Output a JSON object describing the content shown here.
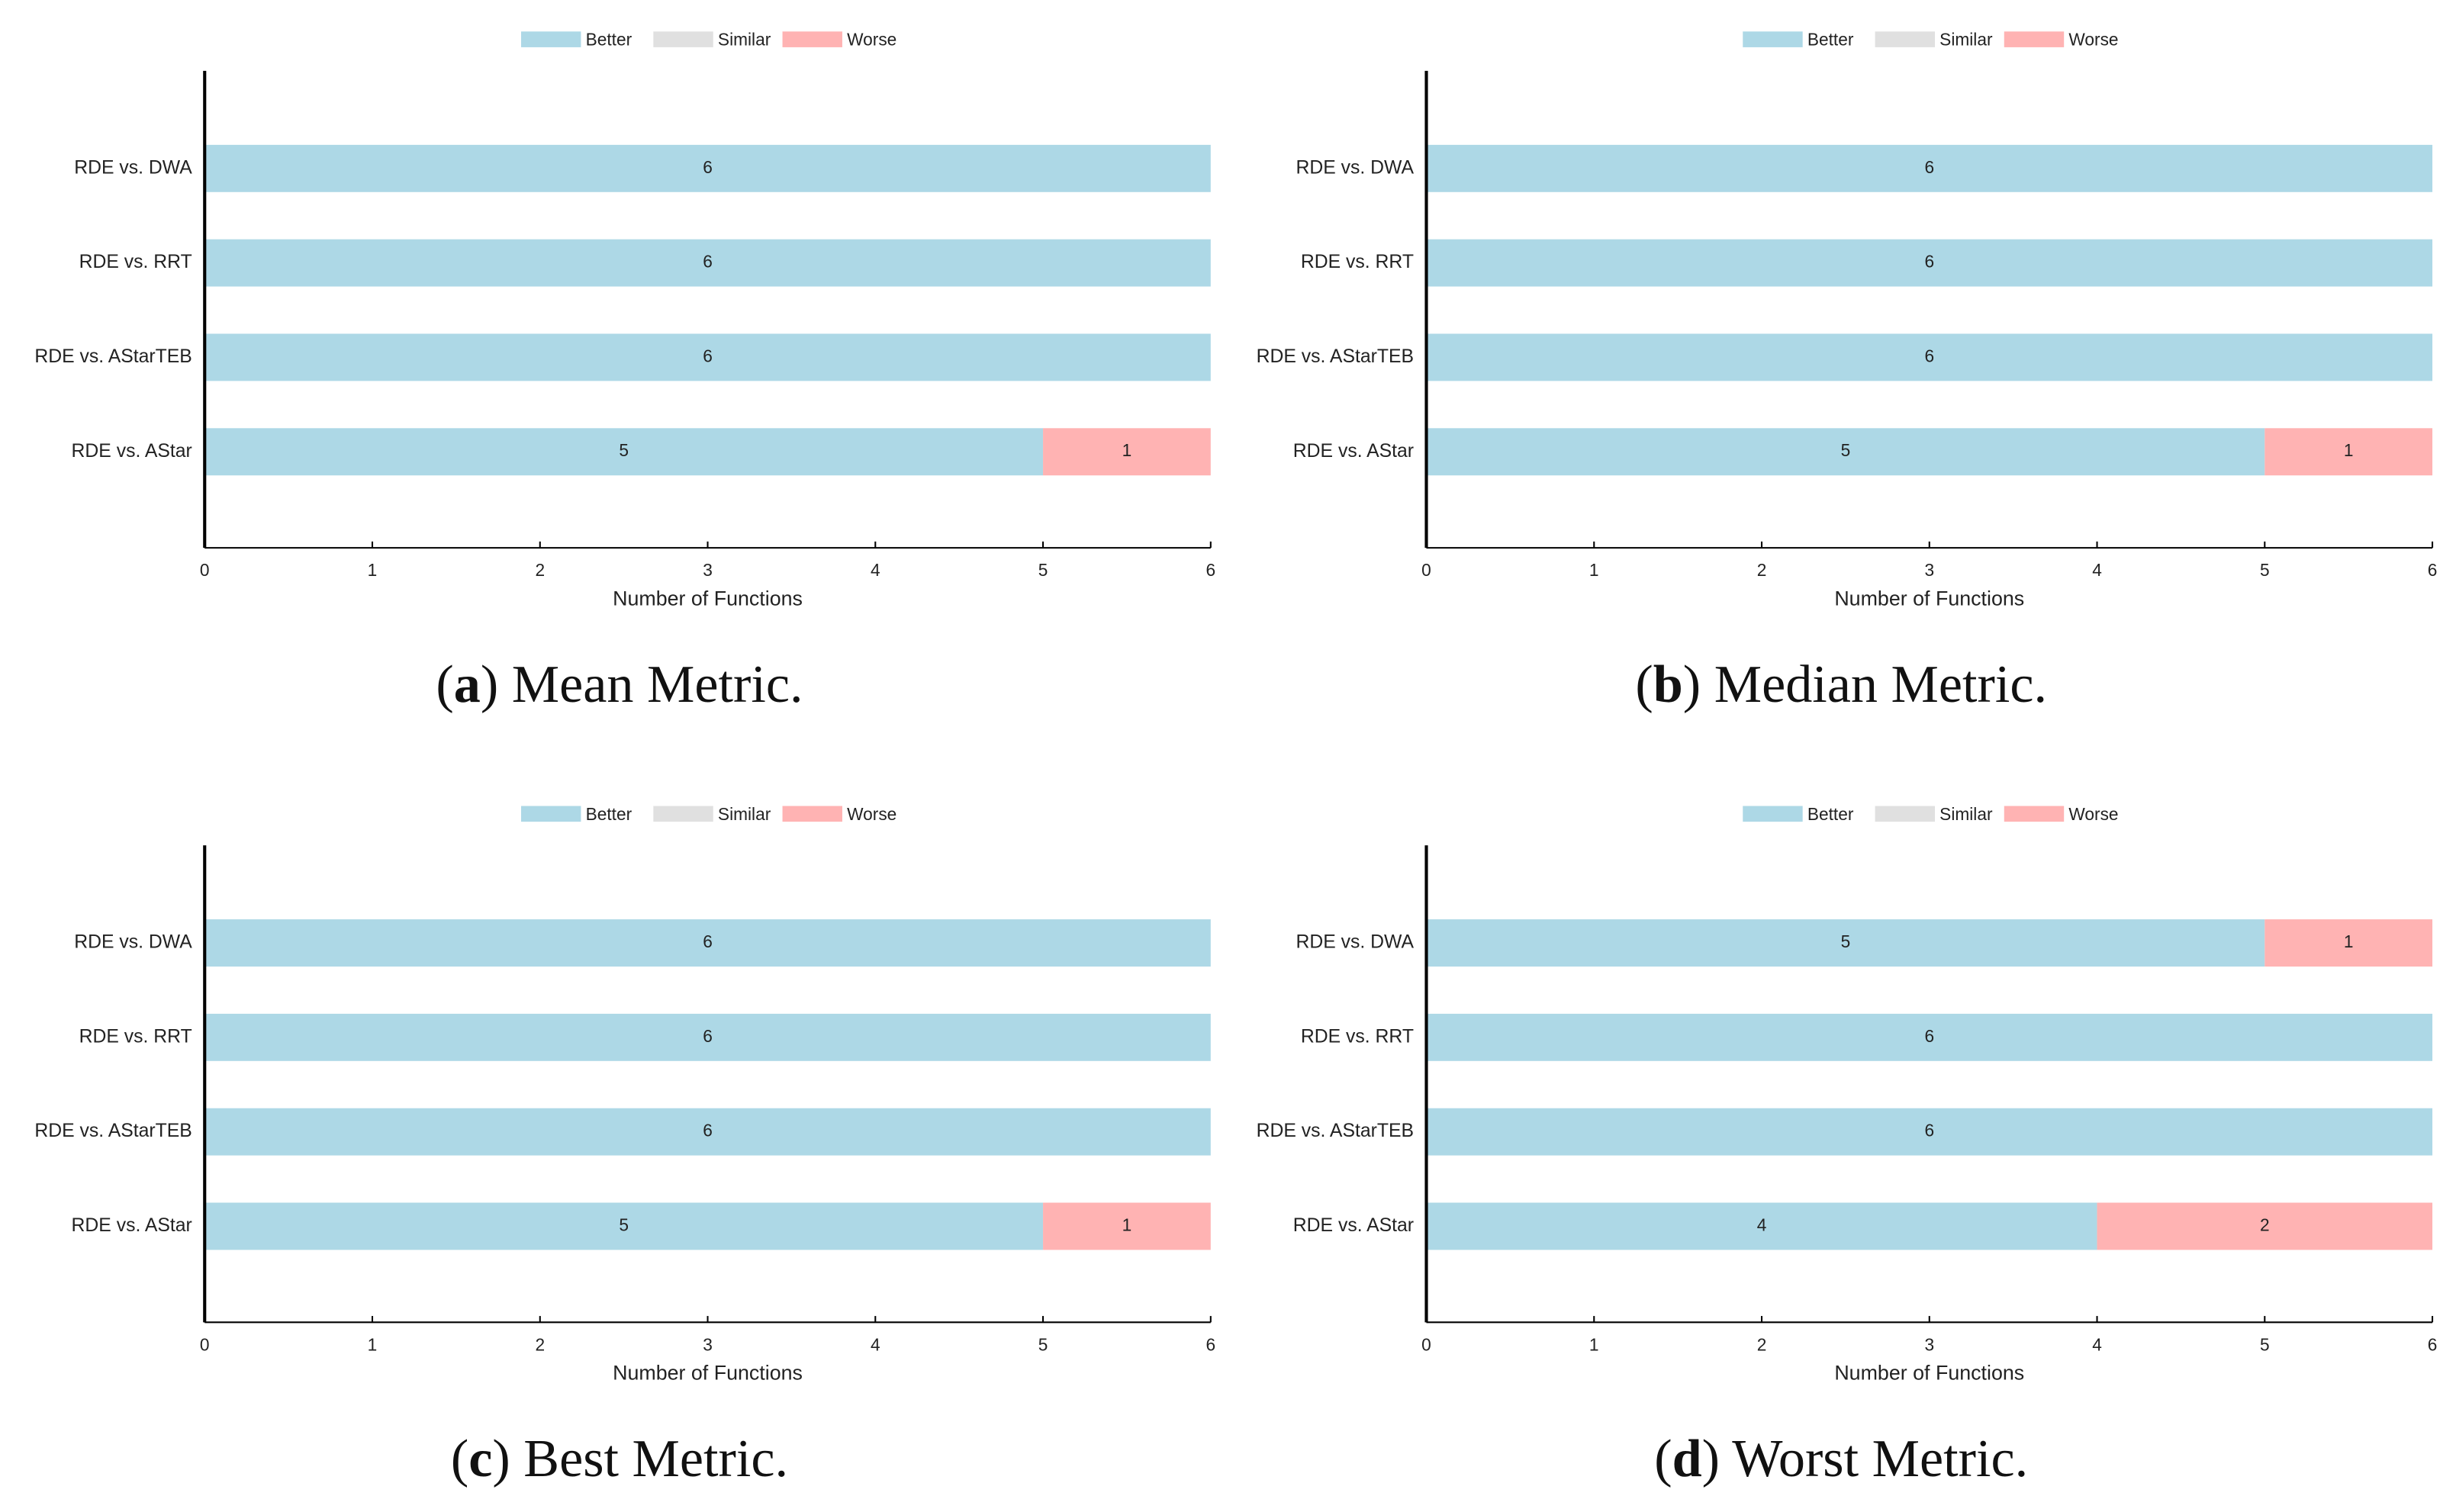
{
  "chart_data": [
    {
      "type": "bar",
      "orientation": "horizontal",
      "stacked": true,
      "categories": [
        "RDE vs. DWA",
        "RDE vs. RRT",
        "RDE vs. AStarTEB",
        "RDE vs. AStar"
      ],
      "series": [
        {
          "name": "Better",
          "color": "#add8e6",
          "values": [
            6,
            6,
            6,
            5
          ]
        },
        {
          "name": "Similar",
          "color": "#e0e0e0",
          "values": [
            0,
            0,
            0,
            0
          ]
        },
        {
          "name": "Worse",
          "color": "#ffb3b3",
          "values": [
            0,
            0,
            0,
            1
          ]
        }
      ],
      "xlim": [
        0,
        6
      ],
      "xticks": [
        0,
        1,
        2,
        3,
        4,
        5,
        6
      ],
      "xlabel": "Number of Functions",
      "legend": "top",
      "caption": {
        "open": "(",
        "label": "a",
        "text": ") Mean Metric."
      }
    },
    {
      "type": "bar",
      "orientation": "horizontal",
      "stacked": true,
      "categories": [
        "RDE vs. DWA",
        "RDE vs. RRT",
        "RDE vs. AStarTEB",
        "RDE vs. AStar"
      ],
      "series": [
        {
          "name": "Better",
          "color": "#add8e6",
          "values": [
            6,
            6,
            6,
            5
          ]
        },
        {
          "name": "Similar",
          "color": "#e0e0e0",
          "values": [
            0,
            0,
            0,
            0
          ]
        },
        {
          "name": "Worse",
          "color": "#ffb3b3",
          "values": [
            0,
            0,
            0,
            1
          ]
        }
      ],
      "xlim": [
        0,
        6
      ],
      "xticks": [
        0,
        1,
        2,
        3,
        4,
        5,
        6
      ],
      "xlabel": "Number of Functions",
      "legend": "top",
      "caption": {
        "open": "(",
        "label": "b",
        "text": ") Median Metric."
      }
    },
    {
      "type": "bar",
      "orientation": "horizontal",
      "stacked": true,
      "categories": [
        "RDE vs. DWA",
        "RDE vs. RRT",
        "RDE vs. AStarTEB",
        "RDE vs. AStar"
      ],
      "series": [
        {
          "name": "Better",
          "color": "#add8e6",
          "values": [
            6,
            6,
            6,
            5
          ]
        },
        {
          "name": "Similar",
          "color": "#e0e0e0",
          "values": [
            0,
            0,
            0,
            0
          ]
        },
        {
          "name": "Worse",
          "color": "#ffb3b3",
          "values": [
            0,
            0,
            0,
            1
          ]
        }
      ],
      "xlim": [
        0,
        6
      ],
      "xticks": [
        0,
        1,
        2,
        3,
        4,
        5,
        6
      ],
      "xlabel": "Number of Functions",
      "legend": "top",
      "caption": {
        "open": "(",
        "label": "c",
        "text": ") Best Metric."
      }
    },
    {
      "type": "bar",
      "orientation": "horizontal",
      "stacked": true,
      "categories": [
        "RDE vs. DWA",
        "RDE vs. RRT",
        "RDE vs. AStarTEB",
        "RDE vs. AStar"
      ],
      "series": [
        {
          "name": "Better",
          "color": "#add8e6",
          "values": [
            5,
            6,
            6,
            4
          ]
        },
        {
          "name": "Similar",
          "color": "#e0e0e0",
          "values": [
            0,
            0,
            0,
            0
          ]
        },
        {
          "name": "Worse",
          "color": "#ffb3b3",
          "values": [
            1,
            0,
            0,
            2
          ]
        }
      ],
      "xlim": [
        0,
        6
      ],
      "xticks": [
        0,
        1,
        2,
        3,
        4,
        5,
        6
      ],
      "xlabel": "Number of Functions",
      "legend": "top",
      "caption": {
        "open": "(",
        "label": "d",
        "text": ") Worst Metric."
      }
    }
  ]
}
